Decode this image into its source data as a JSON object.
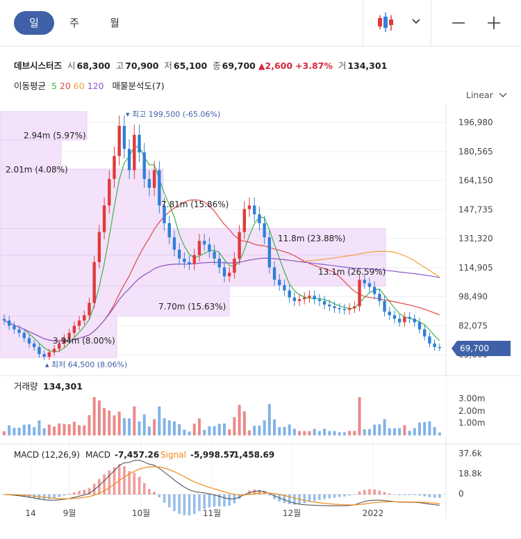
{
  "tabs": [
    {
      "label": "일"
    },
    {
      "label": "주"
    },
    {
      "label": "월"
    }
  ],
  "info": {
    "name": "데브시스터즈",
    "open_label": "시",
    "open": "68,300",
    "high_label": "고",
    "high": "70,900",
    "low_label": "저",
    "low": "65,100",
    "close_label": "종",
    "close": "69,700",
    "change": "2,600",
    "change_pct": "+3.87%",
    "vol_label": "거",
    "volume": "134,301"
  },
  "ma": {
    "label": "이동평균",
    "p5": "5",
    "p20": "20",
    "p60": "60",
    "p120": "120",
    "vp": "매물분석도(7)"
  },
  "scale_mode": "Linear",
  "colors": {
    "up": "#e03a3a",
    "down": "#2f80d8",
    "ma5": "#3cb24a",
    "ma20": "#e04848",
    "ma60": "#f0a03a",
    "ma120": "#8a5ad0",
    "accent": "#3f61a8",
    "vp": "#f3e2fa"
  },
  "chart_data": {
    "type": "candlestick",
    "y_ticks": [
      "196,980",
      "180,565",
      "164,150",
      "147,735",
      "131,320",
      "114,905",
      "98,490",
      "82,075",
      "65,660"
    ],
    "y_tick_values": [
      196980,
      180565,
      164150,
      147735,
      131320,
      114905,
      98490,
      82075,
      65660
    ],
    "x_ticks": [
      "14",
      "9월",
      "10월",
      "11월",
      "12월",
      "2022"
    ],
    "last_price_label": "69,700",
    "high_annotation": "최고 199,500 (-65.06%)",
    "low_annotation": "최저 64,500 (8.06%)",
    "volume_profile": [
      {
        "label": "2.94m (5.97%)",
        "low": 187000,
        "high": 203000
      },
      {
        "label": "2.01m (4.08%)",
        "low": 170600,
        "high": 187000
      },
      {
        "label": "7.81m (15.86%)",
        "low": 137000,
        "high": 170600
      },
      {
        "label": "11.8m (23.88%)",
        "low": 122000,
        "high": 137000
      },
      {
        "label": "13.1m (26.59%)",
        "low": 104500,
        "high": 122000
      },
      {
        "label": "7.70m (15.63%)",
        "low": 87500,
        "high": 104500
      },
      {
        "label": "3.94m (8.00%)",
        "low": 64000,
        "high": 87500
      }
    ],
    "close_prices": [
      85000,
      82000,
      80000,
      78000,
      75000,
      72000,
      70000,
      66000,
      64500,
      67000,
      69000,
      72000,
      75000,
      78000,
      82000,
      85000,
      88000,
      95000,
      118000,
      135000,
      150000,
      165000,
      178000,
      195000,
      182000,
      170000,
      190000,
      180000,
      165000,
      160000,
      170000,
      150000,
      140000,
      132000,
      125000,
      120000,
      118000,
      117000,
      122000,
      130000,
      128000,
      124000,
      120000,
      115000,
      110000,
      112000,
      120000,
      135000,
      148000,
      150000,
      145000,
      140000,
      132000,
      115000,
      108000,
      105000,
      102000,
      98000,
      96000,
      97000,
      98000,
      99000,
      97000,
      96000,
      94000,
      93000,
      92000,
      91500,
      91000,
      92000,
      93000,
      108000,
      106000,
      104000,
      100000,
      96000,
      90000,
      88000,
      86000,
      84000,
      87000,
      86000,
      84000,
      80000,
      76000,
      72000,
      70000,
      69700
    ],
    "volume": {
      "title": "거래량",
      "value": "134,301",
      "ticks": [
        "3.00m",
        "2.00m",
        "1.00m"
      ]
    },
    "macd": {
      "title": "MACD (12,26,9)",
      "macd_label": "MACD",
      "macd_value": "-7,457.26",
      "signal_label": "Signal",
      "signal_value": "-5,998.57",
      "hist_value": "-1,458.69",
      "ticks": [
        "37.6k",
        "18.8k",
        "0"
      ]
    }
  }
}
